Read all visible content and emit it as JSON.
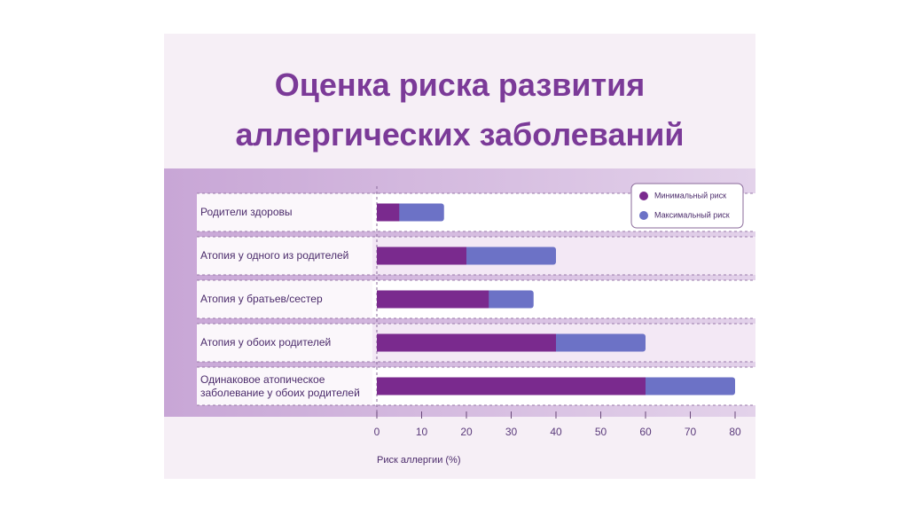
{
  "chart_data": {
    "type": "bar",
    "orientation": "horizontal",
    "title": "Оценка риска развития\nаллергических заболеваний",
    "categories": [
      "Родители здоровы",
      "Атопия у одного из родителей",
      "Атопия у братьев/сестер",
      "Атопия у обоих родителей",
      "Одинаковое атопическое\nзаболевание у обоих родителей"
    ],
    "series": [
      {
        "name": "Минимальный риск",
        "color": "#7a2a8e",
        "values": [
          5,
          20,
          25,
          40,
          60
        ]
      },
      {
        "name": "Максимальный риск",
        "color": "#6c72c6",
        "values": [
          15,
          40,
          35,
          60,
          80
        ]
      }
    ],
    "xlim": [
      0,
      80
    ],
    "xticks": [
      0,
      10,
      20,
      30,
      40,
      50,
      60,
      70,
      80
    ],
    "xlabel": "Риск аллергии (%)",
    "legend": "top-right"
  }
}
